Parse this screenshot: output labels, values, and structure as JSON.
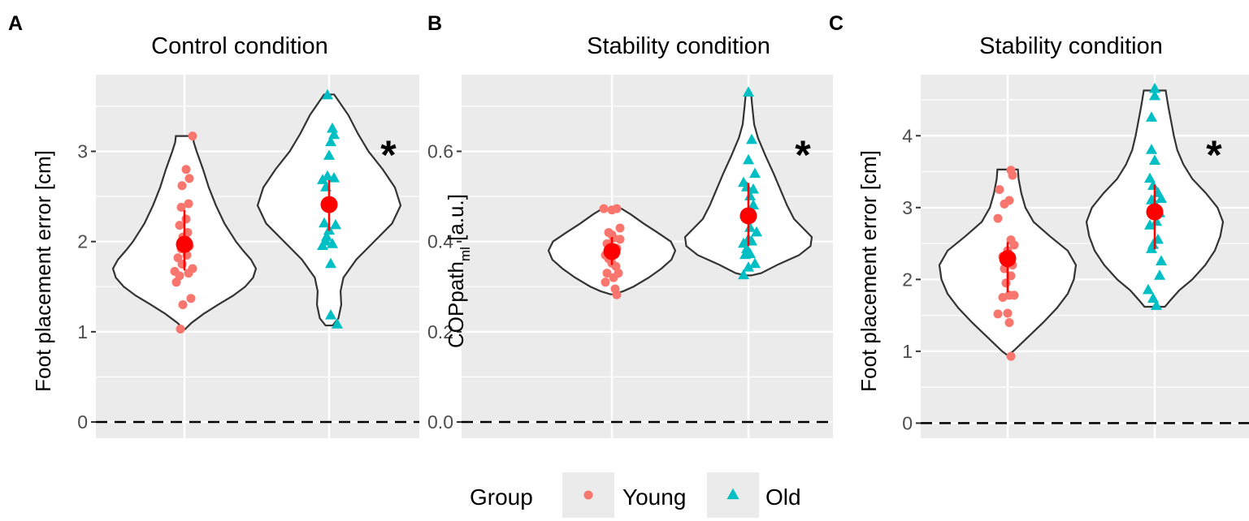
{
  "chart_data": [
    {
      "type": "violin",
      "panel_letter": "A",
      "title": "Control  condition",
      "ylabel": "Foot placement error [cm]",
      "ylabel_sub": "",
      "ylabel_suffix": "",
      "ylim": [
        -0.18,
        3.85
      ],
      "yticks": [
        0,
        1,
        2,
        3
      ],
      "ytick_labels": [
        "0",
        "1",
        "2",
        "3"
      ],
      "significance": "*",
      "groups": [
        {
          "name": "Young",
          "color": "#F8766D",
          "marker": "circle",
          "mean": 1.97,
          "error": [
            1.68,
            2.35
          ],
          "violin": [
            [
              1.03,
              0.01
            ],
            [
              1.1,
              0.1
            ],
            [
              1.2,
              0.27
            ],
            [
              1.3,
              0.47
            ],
            [
              1.4,
              0.68
            ],
            [
              1.5,
              0.85
            ],
            [
              1.6,
              0.96
            ],
            [
              1.7,
              1.0
            ],
            [
              1.8,
              0.93
            ],
            [
              1.9,
              0.82
            ],
            [
              2.0,
              0.72
            ],
            [
              2.2,
              0.56
            ],
            [
              2.4,
              0.44
            ],
            [
              2.6,
              0.34
            ],
            [
              2.8,
              0.26
            ],
            [
              3.0,
              0.17
            ],
            [
              3.1,
              0.13
            ],
            [
              3.17,
              0.12
            ]
          ],
          "points": [
            [
              -0.05,
              1.03
            ],
            [
              0.08,
              1.37
            ],
            [
              -0.02,
              1.3
            ],
            [
              -0.1,
              1.55
            ],
            [
              -0.06,
              1.62
            ],
            [
              0.05,
              1.65
            ],
            [
              -0.12,
              1.67
            ],
            [
              0.1,
              1.7
            ],
            [
              -0.03,
              1.75
            ],
            [
              -0.08,
              1.82
            ],
            [
              0.03,
              1.85
            ],
            [
              -0.04,
              1.92
            ],
            [
              0.06,
              1.95
            ],
            [
              -0.02,
              2.05
            ],
            [
              0.04,
              2.1
            ],
            [
              -0.06,
              2.18
            ],
            [
              0.02,
              2.25
            ],
            [
              -0.04,
              2.38
            ],
            [
              0.05,
              2.42
            ],
            [
              -0.03,
              2.62
            ],
            [
              0.06,
              2.7
            ],
            [
              0.02,
              2.8
            ],
            [
              0.1,
              3.17
            ]
          ]
        },
        {
          "name": "Old",
          "color": "#00BFC4",
          "marker": "triangle",
          "mean": 2.41,
          "error": [
            2.12,
            2.68
          ],
          "violin": [
            [
              1.07,
              0.05
            ],
            [
              1.15,
              0.13
            ],
            [
              1.3,
              0.17
            ],
            [
              1.45,
              0.16
            ],
            [
              1.6,
              0.2
            ],
            [
              1.8,
              0.38
            ],
            [
              2.0,
              0.63
            ],
            [
              2.2,
              0.88
            ],
            [
              2.4,
              1.0
            ],
            [
              2.6,
              0.92
            ],
            [
              2.8,
              0.75
            ],
            [
              3.0,
              0.55
            ],
            [
              3.2,
              0.4
            ],
            [
              3.4,
              0.27
            ],
            [
              3.55,
              0.14
            ],
            [
              3.63,
              0.07
            ]
          ],
          "points": [
            [
              0.1,
              1.08
            ],
            [
              0.02,
              1.18
            ],
            [
              0.02,
              1.75
            ],
            [
              -0.08,
              1.95
            ],
            [
              0.04,
              1.97
            ],
            [
              -0.04,
              2.0
            ],
            [
              -0.03,
              2.05
            ],
            [
              0.0,
              2.12
            ],
            [
              0.08,
              2.18
            ],
            [
              -0.06,
              2.2
            ],
            [
              0.02,
              2.4
            ],
            [
              -0.04,
              2.6
            ],
            [
              -0.08,
              2.68
            ],
            [
              0.06,
              2.7
            ],
            [
              -0.02,
              2.72
            ],
            [
              0.0,
              2.95
            ],
            [
              0.02,
              3.1
            ],
            [
              0.06,
              3.18
            ],
            [
              0.04,
              3.25
            ],
            [
              -0.02,
              3.62
            ]
          ]
        }
      ]
    },
    {
      "type": "violin",
      "panel_letter": "B",
      "title": "Stability  condition",
      "ylabel": "COPpath",
      "ylabel_sub": "ml",
      "ylabel_suffix": " [a.u.]",
      "ylim": [
        -0.036,
        0.77
      ],
      "yticks": [
        0.0,
        0.2,
        0.4,
        0.6
      ],
      "ytick_labels": [
        "0.0",
        "0.2",
        "0.4",
        "0.6"
      ],
      "significance": "*",
      "groups": [
        {
          "name": "Young",
          "color": "#F8766D",
          "marker": "circle",
          "mean": 0.378,
          "error": [
            0.348,
            0.41
          ],
          "violin": [
            [
              0.283,
              0.02
            ],
            [
              0.29,
              0.18
            ],
            [
              0.3,
              0.34
            ],
            [
              0.32,
              0.58
            ],
            [
              0.34,
              0.78
            ],
            [
              0.36,
              0.94
            ],
            [
              0.38,
              1.0
            ],
            [
              0.4,
              0.93
            ],
            [
              0.42,
              0.72
            ],
            [
              0.44,
              0.5
            ],
            [
              0.46,
              0.3
            ],
            [
              0.473,
              0.15
            ]
          ],
          "points": [
            [
              0.06,
              0.282
            ],
            [
              0.04,
              0.295
            ],
            [
              -0.08,
              0.31
            ],
            [
              0.02,
              0.32
            ],
            [
              -0.06,
              0.33
            ],
            [
              0.08,
              0.33
            ],
            [
              0.05,
              0.345
            ],
            [
              0.0,
              0.352
            ],
            [
              -0.04,
              0.362
            ],
            [
              -0.08,
              0.37
            ],
            [
              0.04,
              0.372
            ],
            [
              0.06,
              0.385
            ],
            [
              -0.06,
              0.395
            ],
            [
              0.1,
              0.405
            ],
            [
              0.02,
              0.408
            ],
            [
              0.0,
              0.415
            ],
            [
              -0.04,
              0.42
            ],
            [
              0.1,
              0.43
            ],
            [
              0.0,
              0.47
            ],
            [
              -0.1,
              0.473
            ],
            [
              0.06,
              0.473
            ]
          ]
        },
        {
          "name": "Old",
          "color": "#00BFC4",
          "marker": "triangle",
          "mean": 0.457,
          "error": [
            0.39,
            0.53
          ],
          "violin": [
            [
              0.325,
              0.05
            ],
            [
              0.33,
              0.2
            ],
            [
              0.35,
              0.48
            ],
            [
              0.37,
              0.8
            ],
            [
              0.39,
              0.98
            ],
            [
              0.41,
              1.0
            ],
            [
              0.43,
              0.86
            ],
            [
              0.45,
              0.72
            ],
            [
              0.48,
              0.61
            ],
            [
              0.51,
              0.52
            ],
            [
              0.55,
              0.4
            ],
            [
              0.59,
              0.27
            ],
            [
              0.63,
              0.15
            ],
            [
              0.66,
              0.09
            ],
            [
              0.7,
              0.06
            ],
            [
              0.73,
              0.04
            ]
          ],
          "points": [
            [
              -0.06,
              0.325
            ],
            [
              0.0,
              0.342
            ],
            [
              0.08,
              0.35
            ],
            [
              -0.04,
              0.37
            ],
            [
              0.02,
              0.372
            ],
            [
              -0.02,
              0.383
            ],
            [
              -0.06,
              0.395
            ],
            [
              0.04,
              0.4
            ],
            [
              0.0,
              0.405
            ],
            [
              0.1,
              0.42
            ],
            [
              0.02,
              0.43
            ],
            [
              -0.04,
              0.46
            ],
            [
              0.06,
              0.48
            ],
            [
              0.02,
              0.5
            ],
            [
              0.06,
              0.515
            ],
            [
              -0.02,
              0.52
            ],
            [
              -0.06,
              0.53
            ],
            [
              0.08,
              0.55
            ],
            [
              0.0,
              0.58
            ],
            [
              0.04,
              0.625
            ],
            [
              0.0,
              0.73
            ]
          ]
        }
      ]
    },
    {
      "type": "violin",
      "panel_letter": "C",
      "title": "Stability  condition",
      "ylabel": "Foot placement error [cm]",
      "ylabel_sub": "",
      "ylabel_suffix": "",
      "ylim": [
        -0.21,
        4.85
      ],
      "yticks": [
        0,
        1,
        2,
        3,
        4
      ],
      "ytick_labels": [
        "0",
        "1",
        "2",
        "3",
        "4"
      ],
      "significance": "*",
      "groups": [
        {
          "name": "Young",
          "color": "#F8766D",
          "marker": "circle",
          "mean": 2.29,
          "error": [
            1.82,
            2.52
          ],
          "violin": [
            [
              0.95,
              0.01
            ],
            [
              1.0,
              0.08
            ],
            [
              1.2,
              0.3
            ],
            [
              1.4,
              0.52
            ],
            [
              1.6,
              0.72
            ],
            [
              1.8,
              0.88
            ],
            [
              2.0,
              0.97
            ],
            [
              2.2,
              1.0
            ],
            [
              2.4,
              0.88
            ],
            [
              2.6,
              0.62
            ],
            [
              2.8,
              0.38
            ],
            [
              3.0,
              0.26
            ],
            [
              3.2,
              0.2
            ],
            [
              3.4,
              0.16
            ],
            [
              3.53,
              0.15
            ]
          ],
          "points": [
            [
              0.04,
              0.93
            ],
            [
              0.02,
              1.4
            ],
            [
              -0.12,
              1.52
            ],
            [
              0.0,
              1.53
            ],
            [
              -0.06,
              1.75
            ],
            [
              0.02,
              1.78
            ],
            [
              0.08,
              1.78
            ],
            [
              -0.02,
              1.95
            ],
            [
              0.04,
              2.05
            ],
            [
              -0.04,
              2.15
            ],
            [
              0.06,
              2.2
            ],
            [
              0.02,
              2.25
            ],
            [
              -0.06,
              2.32
            ],
            [
              0.0,
              2.4
            ],
            [
              0.08,
              2.48
            ],
            [
              0.04,
              2.55
            ],
            [
              -0.12,
              2.85
            ],
            [
              -0.04,
              3.05
            ],
            [
              0.02,
              3.1
            ],
            [
              -0.1,
              3.25
            ],
            [
              0.06,
              3.45
            ],
            [
              0.04,
              3.52
            ]
          ]
        },
        {
          "name": "Old",
          "color": "#00BFC4",
          "marker": "triangle",
          "mean": 2.94,
          "error": [
            2.42,
            3.32
          ],
          "violin": [
            [
              1.62,
              0.15
            ],
            [
              1.7,
              0.22
            ],
            [
              1.85,
              0.36
            ],
            [
              2.0,
              0.55
            ],
            [
              2.2,
              0.74
            ],
            [
              2.4,
              0.88
            ],
            [
              2.6,
              0.96
            ],
            [
              2.8,
              1.0
            ],
            [
              3.0,
              0.92
            ],
            [
              3.2,
              0.75
            ],
            [
              3.4,
              0.55
            ],
            [
              3.6,
              0.42
            ],
            [
              3.8,
              0.33
            ],
            [
              4.0,
              0.28
            ],
            [
              4.2,
              0.24
            ],
            [
              4.4,
              0.2
            ],
            [
              4.63,
              0.16
            ]
          ],
          "points": [
            [
              0.02,
              1.63
            ],
            [
              -0.02,
              1.73
            ],
            [
              -0.08,
              1.85
            ],
            [
              0.06,
              2.05
            ],
            [
              0.08,
              2.25
            ],
            [
              -0.04,
              2.42
            ],
            [
              -0.02,
              2.48
            ],
            [
              0.04,
              2.55
            ],
            [
              -0.06,
              2.75
            ],
            [
              0.02,
              2.8
            ],
            [
              0.06,
              2.92
            ],
            [
              0.0,
              3.05
            ],
            [
              -0.04,
              3.1
            ],
            [
              0.08,
              3.12
            ],
            [
              0.04,
              3.2
            ],
            [
              -0.02,
              3.3
            ],
            [
              -0.06,
              3.4
            ],
            [
              0.0,
              3.65
            ],
            [
              -0.04,
              3.8
            ],
            [
              -0.04,
              4.25
            ],
            [
              0.0,
              4.55
            ],
            [
              0.0,
              4.65
            ]
          ]
        }
      ]
    }
  ],
  "legend": {
    "title": "Group",
    "items": [
      {
        "label": "Young",
        "color": "#F8766D",
        "marker": "circle"
      },
      {
        "label": "Old",
        "color": "#00BFC4",
        "marker": "triangle"
      }
    ]
  },
  "colors": {
    "panel_background": "#EBEBEB",
    "grid": "#FFFFFF",
    "violin_outline": "#333333",
    "mean_marker": "#FF0000"
  }
}
